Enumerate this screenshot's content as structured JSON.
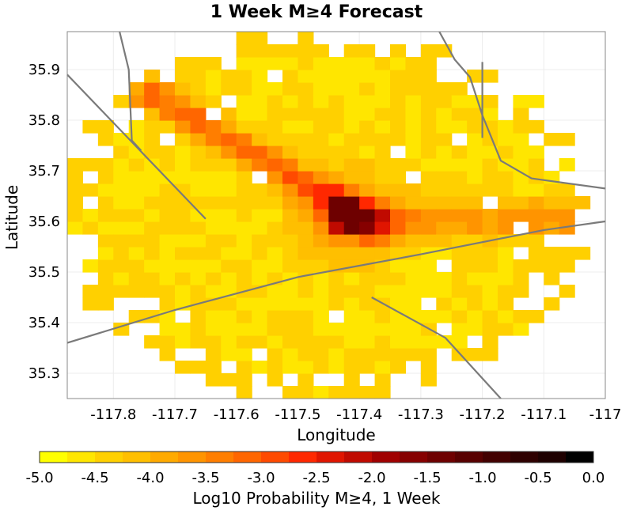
{
  "chart_data": {
    "type": "heatmap",
    "title": "1 Week M≥4 Forecast",
    "xlabel": "Longitude",
    "ylabel": "Latitude",
    "xlim": [
      -117.875,
      -117.0
    ],
    "ylim": [
      35.25,
      35.975
    ],
    "x_ticks": [
      -117.8,
      -117.7,
      -117.6,
      -117.5,
      -117.4,
      -117.3,
      -117.2,
      -117.1,
      -117.0
    ],
    "x_tick_labels": [
      "-117.8",
      "-117.7",
      "-117.6",
      "-117.5",
      "-117.4",
      "-117.3",
      "-117.2",
      "-117.1",
      "-117"
    ],
    "y_ticks": [
      35.3,
      35.4,
      35.5,
      35.6,
      35.7,
      35.8,
      35.9
    ],
    "y_tick_labels": [
      "35.3",
      "35.4",
      "35.5",
      "35.6",
      "35.7",
      "35.8",
      "35.9"
    ],
    "grid": true,
    "cell_size_deg": 0.025,
    "value_range": [
      -5.0,
      0.0
    ],
    "peak": {
      "lon": -117.42,
      "lat": 35.615,
      "value": -1.3
    },
    "background_level": -4.5,
    "colorbar": {
      "label": "Log10 Probability M≥4, 1 Week",
      "min": -5.0,
      "max": 0.0,
      "ticks": [
        -5.0,
        -4.5,
        -4.0,
        -3.5,
        -3.0,
        -2.5,
        -2.0,
        -1.5,
        -1.0,
        -0.5,
        0.0
      ],
      "tick_labels": [
        "-5.0",
        "-4.5",
        "-4.0",
        "-3.5",
        "-3.0",
        "-2.5",
        "-2.0",
        "-1.5",
        "-1.0",
        "-0.5",
        "0.0"
      ],
      "colors": [
        "#ffff00",
        "#ffe600",
        "#ffd000",
        "#ffbf00",
        "#ffaa00",
        "#ff9400",
        "#ff7e00",
        "#ff6600",
        "#ff4a00",
        "#ff2800",
        "#e01500",
        "#c00a00",
        "#a00000",
        "#860000",
        "#6e0000",
        "#580000",
        "#420000",
        "#2e0000",
        "#1e0000",
        "#000000"
      ]
    },
    "fault_lines": [
      [
        [
          -117.875,
          35.89
        ],
        [
          -117.65,
          35.605
        ]
      ],
      [
        [
          -117.875,
          35.36
        ],
        [
          -117.7,
          35.425
        ],
        [
          -117.5,
          35.49
        ],
        [
          -117.3,
          35.535
        ],
        [
          -117.1,
          35.583
        ],
        [
          -117.0,
          35.6
        ]
      ],
      [
        [
          -117.38,
          35.45
        ],
        [
          -117.26,
          35.37
        ],
        [
          -117.17,
          35.25
        ]
      ],
      [
        [
          -117.27,
          35.975
        ],
        [
          -117.245,
          35.92
        ],
        [
          -117.22,
          35.885
        ],
        [
          -117.2,
          35.81
        ],
        [
          -117.17,
          35.72
        ],
        [
          -117.12,
          35.685
        ],
        [
          -117.0,
          35.665
        ]
      ],
      [
        [
          -117.2,
          35.915
        ],
        [
          -117.2,
          35.765
        ]
      ],
      [
        [
          -117.79,
          35.975
        ],
        [
          -117.775,
          35.9
        ],
        [
          -117.77,
          35.76
        ],
        [
          -117.755,
          35.74
        ]
      ]
    ]
  }
}
